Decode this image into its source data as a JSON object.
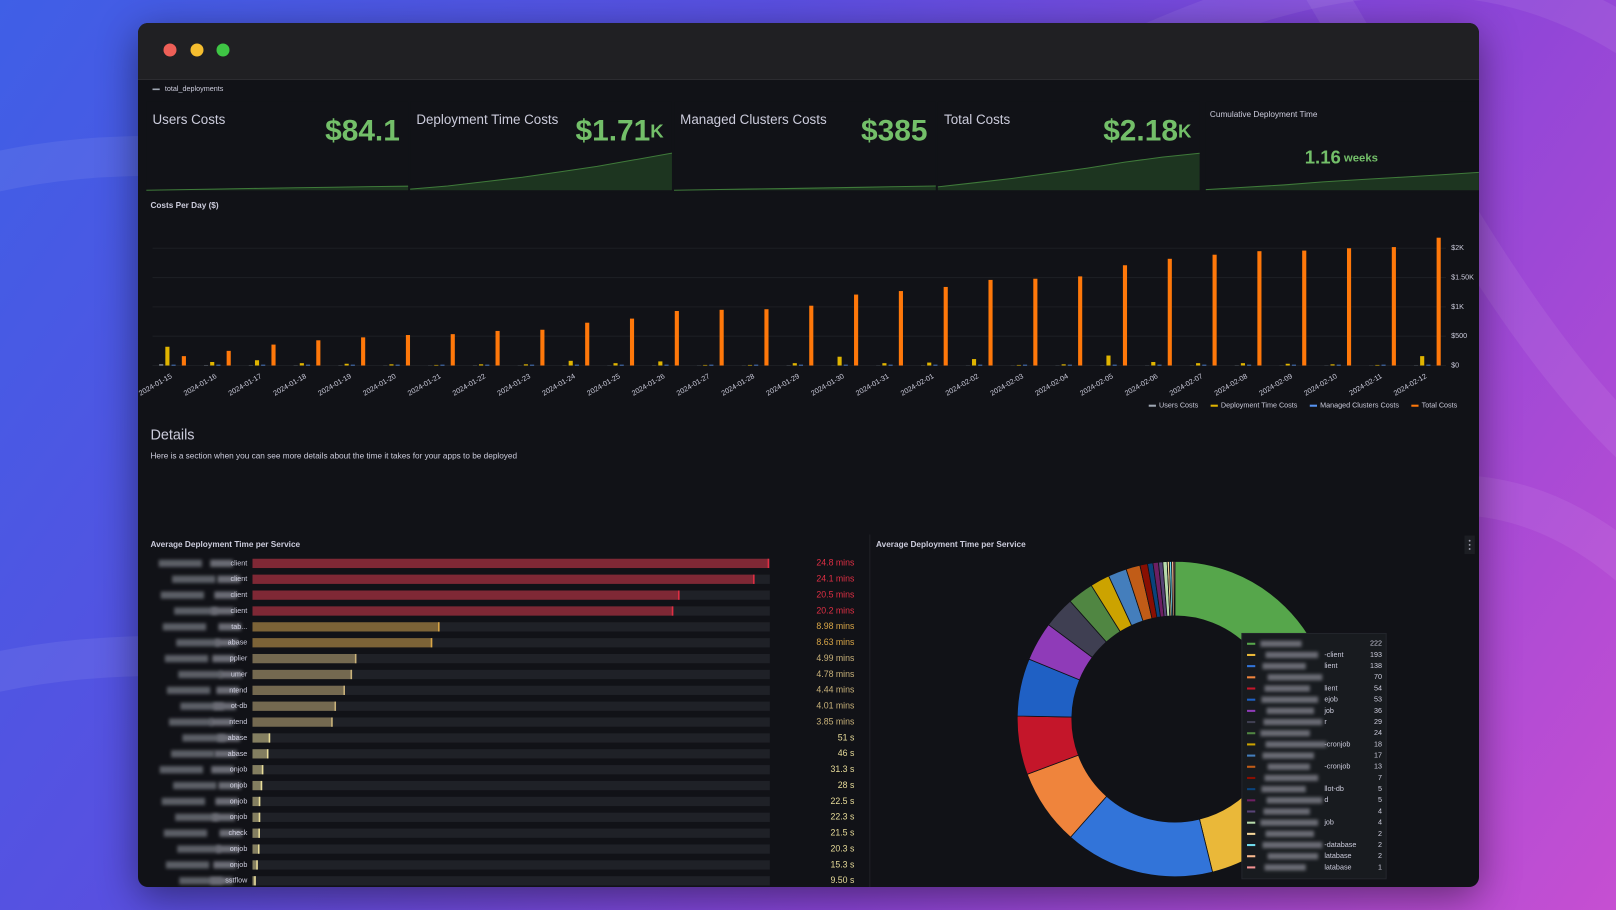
{
  "window": {
    "legend_label": "total_deployments"
  },
  "stats": [
    {
      "title": "Users Costs",
      "value": "$84.1",
      "spark": [
        3,
        15,
        27,
        40,
        52,
        64,
        75,
        84.1
      ],
      "ylim": [
        0,
        800
      ]
    },
    {
      "title": "Deployment Time Costs",
      "value": "$1.71",
      "unit": "K",
      "spark": [
        50,
        200,
        400,
        600,
        850,
        1100,
        1400,
        1710
      ],
      "ylim": [
        0,
        1800
      ]
    },
    {
      "title": "Managed Clusters Costs",
      "value": "$385",
      "spark": [
        13,
        60,
        110,
        160,
        215,
        270,
        330,
        385
      ],
      "ylim": [
        0,
        3500
      ]
    },
    {
      "title": "Total Costs",
      "value": "$2.18",
      "unit": "K",
      "spark": [
        200,
        450,
        700,
        1000,
        1300,
        1650,
        1950,
        2180
      ],
      "ylim": [
        0,
        2300
      ]
    },
    {
      "title": "Cumulative Deployment Time",
      "value": "1.16",
      "unit": "weeks",
      "spark": [
        0.05,
        0.2,
        0.35,
        0.55,
        0.7,
        0.85,
        1.0,
        1.16
      ],
      "ylim": [
        0,
        2
      ]
    }
  ],
  "details": {
    "title": "Details",
    "text": "Here is a section when you can see more details about the time it takes for your apps to be deployed"
  },
  "chart_data": [
    {
      "type": "bar",
      "title": "Costs Per Day ($)",
      "categories": [
        "2024-01-15",
        "2024-01-16",
        "2024-01-17",
        "2024-01-18",
        "2024-01-19",
        "2024-01-20",
        "2024-01-21",
        "2024-01-22",
        "2024-01-23",
        "2024-01-24",
        "2024-01-25",
        "2024-01-26",
        "2024-01-27",
        "2024-01-28",
        "2024-01-29",
        "2024-01-30",
        "2024-01-31",
        "2024-02-01",
        "2024-02-02",
        "2024-02-03",
        "2024-02-04",
        "2024-02-05",
        "2024-02-06",
        "2024-02-07",
        "2024-02-08",
        "2024-02-09",
        "2024-02-10",
        "2024-02-11",
        "2024-02-12"
      ],
      "series": [
        {
          "name": "Users Costs",
          "color": "#9fa7b3",
          "values": [
            20,
            5,
            4,
            3,
            3,
            2,
            2,
            3,
            2,
            3,
            2,
            3,
            2,
            2,
            3,
            2,
            2,
            3,
            2,
            2,
            2,
            3,
            2,
            2,
            3,
            2,
            2,
            2,
            3
          ]
        },
        {
          "name": "Deployment Time Costs",
          "color": "#e0b400",
          "values": [
            320,
            60,
            90,
            40,
            30,
            20,
            10,
            20,
            20,
            80,
            40,
            70,
            10,
            10,
            40,
            150,
            40,
            50,
            110,
            10,
            20,
            170,
            60,
            40,
            40,
            30,
            20,
            10,
            160
          ]
        },
        {
          "name": "Managed Clusters Costs",
          "color": "#5794f2",
          "values": [
            13,
            13,
            13,
            13,
            13,
            13,
            13,
            13,
            13,
            13,
            13,
            13,
            13,
            13,
            13,
            13,
            13,
            13,
            13,
            13,
            13,
            13,
            13,
            13,
            13,
            13,
            13,
            13,
            13
          ]
        },
        {
          "name": "Total Costs",
          "color": "#ff780a",
          "values": [
            160,
            250,
            357,
            430,
            480,
            520,
            535,
            590,
            610,
            730,
            800,
            930,
            950,
            960,
            1020,
            1210,
            1270,
            1340,
            1460,
            1480,
            1520,
            1710,
            1820,
            1890,
            1950,
            1960,
            2000,
            2020,
            2180
          ]
        }
      ],
      "ylim": [
        0,
        2250
      ],
      "yticks": [
        {
          "value": 0,
          "label": "$0"
        },
        {
          "value": 500,
          "label": "$500"
        },
        {
          "value": 1000,
          "label": "$1K"
        },
        {
          "value": 1500,
          "label": "$1.50K"
        },
        {
          "value": 2000,
          "label": "$2K"
        }
      ],
      "grid": true,
      "legend": "bottom-right"
    },
    {
      "type": "bargauge",
      "title": "Average Deployment Time per Service",
      "categories": [
        "client",
        "client",
        "client",
        "client",
        "tab...",
        "abase",
        "pplier",
        "umer",
        "ntend",
        "ot-db",
        "ntend",
        "abase",
        "abase",
        "onjob",
        "onjob",
        "onjob",
        "onjob",
        "check",
        "onjob",
        "onjob",
        "sstflow"
      ],
      "values": [
        1488,
        1446,
        1230,
        1212,
        538.8,
        517.8,
        299.4,
        286.8,
        266.4,
        240.6,
        231,
        51,
        46,
        31.3,
        28,
        22.5,
        22.3,
        21.5,
        20.3,
        15.3,
        9.5
      ],
      "value_labels": [
        "24.8 mins",
        "24.1 mins",
        "20.5 mins",
        "20.2 mins",
        "8.98 mins",
        "8.63 mins",
        "4.99 mins",
        "4.78 mins",
        "4.44 mins",
        "4.01 mins",
        "3.85 mins",
        "51 s",
        "46 s",
        "31.3 s",
        "28 s",
        "22.5 s",
        "22.3 s",
        "21.5 s",
        "20.3 s",
        "15.3 s",
        "9.50 s"
      ],
      "colors": [
        "#e02f44",
        "#e02f44",
        "#e02f44",
        "#e02f44",
        "#d9a648",
        "#d9a648",
        "#c9b27a",
        "#c9b27a",
        "#c9b27a",
        "#c9b27a",
        "#c9b27a",
        "#e8dc9a",
        "#e8dc9a",
        "#e8dc9a",
        "#e8dc9a",
        "#e8dc9a",
        "#e8dc9a",
        "#e8dc9a",
        "#e8dc9a",
        "#e8dc9a",
        "#e8dc9a"
      ],
      "xlim": [
        0,
        1490
      ]
    },
    {
      "type": "pie",
      "title": "Average Deployment Time per Service",
      "donut": true,
      "categories": [
        null,
        "-client",
        "lient",
        null,
        "lient",
        "ejob",
        "job",
        "r",
        null,
        "-cronjob",
        null,
        "-cronjob",
        null,
        "llot-db",
        "d",
        null,
        "job",
        null,
        "-database",
        "latabase",
        "latabase"
      ],
      "values": [
        222,
        193,
        138,
        70,
        54,
        53,
        36,
        29,
        24,
        18,
        17,
        13,
        7,
        5,
        5,
        4,
        4,
        2,
        2,
        2,
        1
      ],
      "colors": [
        "#56a64b",
        "#eab839",
        "#3274d9",
        "#ef843c",
        "#c4162a",
        "#1f60c4",
        "#8f3bb8",
        "#3f3f52",
        "#508642",
        "#cca300",
        "#447ebc",
        "#c15c17",
        "#890f02",
        "#0a437c",
        "#6d1f62",
        "#584477",
        "#b7dbab",
        "#f4d598",
        "#70dbed",
        "#f9ba8f",
        "#f29191"
      ]
    }
  ]
}
